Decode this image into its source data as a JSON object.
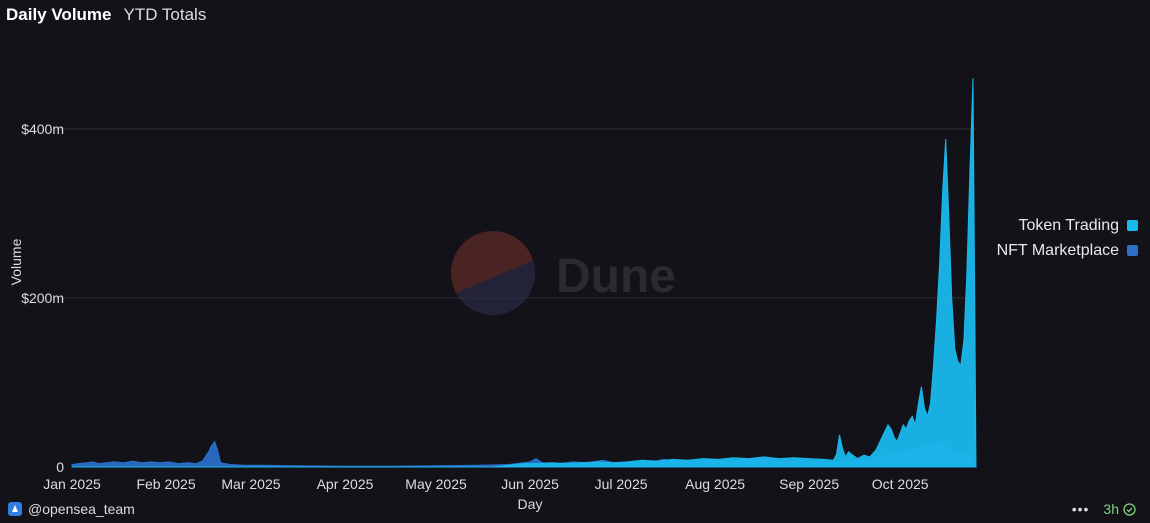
{
  "tabs": [
    {
      "label": "Daily Volume",
      "active": true
    },
    {
      "label": "YTD Totals",
      "active": false
    }
  ],
  "watermark": {
    "text": "Dune"
  },
  "footer": {
    "owner": "@opensea_team",
    "age": "3h"
  },
  "colors": {
    "background": "#121218",
    "token_trading": "#1ab8ec",
    "nft_marketplace": "#2a6fc9",
    "grid": "#2e2e38"
  },
  "chart_data": {
    "type": "area",
    "stacked": true,
    "xlabel": "Day",
    "ylabel": "Volume",
    "xlim": [
      "2025-01-01",
      "2025-10-26"
    ],
    "ylim": [
      0,
      480
    ],
    "y_ticks": [
      {
        "value": 0,
        "label": "0"
      },
      {
        "value": 200,
        "label": "$200m"
      },
      {
        "value": 400,
        "label": "$400m"
      }
    ],
    "x_ticks": [
      {
        "date": "2025-01-01",
        "label": "Jan 2025"
      },
      {
        "date": "2025-02-01",
        "label": "Feb 2025"
      },
      {
        "date": "2025-03-01",
        "label": "Mar 2025"
      },
      {
        "date": "2025-04-01",
        "label": "Apr 2025"
      },
      {
        "date": "2025-05-01",
        "label": "May 2025"
      },
      {
        "date": "2025-06-01",
        "label": "Jun 2025"
      },
      {
        "date": "2025-07-01",
        "label": "Jul 2025"
      },
      {
        "date": "2025-08-01",
        "label": "Aug 2025"
      },
      {
        "date": "2025-09-01",
        "label": "Sep 2025"
      },
      {
        "date": "2025-10-01",
        "label": "Oct 2025"
      }
    ],
    "grid": true,
    "legend_position": "right",
    "units": "$ millions",
    "series": [
      {
        "name": "Token Trading",
        "color": "#1ab8ec",
        "points": [
          [
            "2025-01-01",
            0
          ],
          [
            "2025-05-20",
            0
          ],
          [
            "2025-05-25",
            2
          ],
          [
            "2025-05-30",
            4
          ],
          [
            "2025-06-03",
            4
          ],
          [
            "2025-06-08",
            5
          ],
          [
            "2025-06-13",
            4
          ],
          [
            "2025-06-18",
            5
          ],
          [
            "2025-06-23",
            6
          ],
          [
            "2025-06-28",
            5
          ],
          [
            "2025-07-03",
            6
          ],
          [
            "2025-07-08",
            8
          ],
          [
            "2025-07-13",
            7
          ],
          [
            "2025-07-18",
            9
          ],
          [
            "2025-07-23",
            8
          ],
          [
            "2025-07-28",
            10
          ],
          [
            "2025-08-02",
            9
          ],
          [
            "2025-08-07",
            11
          ],
          [
            "2025-08-12",
            10
          ],
          [
            "2025-08-17",
            12
          ],
          [
            "2025-08-22",
            10
          ],
          [
            "2025-08-27",
            11
          ],
          [
            "2025-09-01",
            10
          ],
          [
            "2025-09-06",
            9
          ],
          [
            "2025-09-09",
            8
          ],
          [
            "2025-09-10",
            15
          ],
          [
            "2025-09-11",
            38
          ],
          [
            "2025-09-12",
            22
          ],
          [
            "2025-09-13",
            12
          ],
          [
            "2025-09-14",
            18
          ],
          [
            "2025-09-15",
            15
          ],
          [
            "2025-09-17",
            10
          ],
          [
            "2025-09-19",
            14
          ],
          [
            "2025-09-21",
            12
          ],
          [
            "2025-09-23",
            20
          ],
          [
            "2025-09-25",
            35
          ],
          [
            "2025-09-27",
            50
          ],
          [
            "2025-09-28",
            45
          ],
          [
            "2025-09-29",
            35
          ],
          [
            "2025-09-30",
            30
          ],
          [
            "2025-10-01",
            40
          ],
          [
            "2025-10-02",
            50
          ],
          [
            "2025-10-03",
            45
          ],
          [
            "2025-10-04",
            55
          ],
          [
            "2025-10-05",
            60
          ],
          [
            "2025-10-06",
            50
          ],
          [
            "2025-10-07",
            75
          ],
          [
            "2025-10-08",
            95
          ],
          [
            "2025-10-09",
            70
          ],
          [
            "2025-10-10",
            60
          ],
          [
            "2025-10-11",
            75
          ],
          [
            "2025-10-12",
            120
          ],
          [
            "2025-10-13",
            175
          ],
          [
            "2025-10-14",
            240
          ],
          [
            "2025-10-15",
            325
          ],
          [
            "2025-10-16",
            388
          ],
          [
            "2025-10-17",
            300
          ],
          [
            "2025-10-18",
            200
          ],
          [
            "2025-10-19",
            140
          ],
          [
            "2025-10-20",
            125
          ],
          [
            "2025-10-21",
            120
          ],
          [
            "2025-10-22",
            150
          ],
          [
            "2025-10-23",
            230
          ],
          [
            "2025-10-24",
            350
          ],
          [
            "2025-10-25",
            460
          ],
          [
            "2025-10-26",
            0
          ]
        ]
      },
      {
        "name": "NFT Marketplace",
        "color": "#2a6fc9",
        "points": [
          [
            "2025-01-01",
            3
          ],
          [
            "2025-01-03",
            4
          ],
          [
            "2025-01-06",
            5
          ],
          [
            "2025-01-08",
            6
          ],
          [
            "2025-01-10",
            4
          ],
          [
            "2025-01-12",
            5
          ],
          [
            "2025-01-15",
            6
          ],
          [
            "2025-01-18",
            5
          ],
          [
            "2025-01-21",
            7
          ],
          [
            "2025-01-24",
            5
          ],
          [
            "2025-01-27",
            6
          ],
          [
            "2025-01-30",
            5
          ],
          [
            "2025-02-02",
            6
          ],
          [
            "2025-02-05",
            4
          ],
          [
            "2025-02-08",
            5
          ],
          [
            "2025-02-11",
            4
          ],
          [
            "2025-02-13",
            7
          ],
          [
            "2025-02-15",
            18
          ],
          [
            "2025-02-16",
            25
          ],
          [
            "2025-02-17",
            30
          ],
          [
            "2025-02-18",
            20
          ],
          [
            "2025-02-19",
            5
          ],
          [
            "2025-02-22",
            3
          ],
          [
            "2025-02-27",
            2
          ],
          [
            "2025-03-05",
            2
          ],
          [
            "2025-03-15",
            1.5
          ],
          [
            "2025-04-01",
            1
          ],
          [
            "2025-04-15",
            1
          ],
          [
            "2025-05-01",
            1.5
          ],
          [
            "2025-05-15",
            2
          ],
          [
            "2025-05-25",
            3
          ],
          [
            "2025-06-01",
            6
          ],
          [
            "2025-06-03",
            10
          ],
          [
            "2025-06-05",
            5
          ],
          [
            "2025-06-10",
            4
          ],
          [
            "2025-06-15",
            6
          ],
          [
            "2025-06-20",
            5
          ],
          [
            "2025-06-25",
            8
          ],
          [
            "2025-06-30",
            4
          ],
          [
            "2025-07-05",
            6
          ],
          [
            "2025-07-10",
            5
          ],
          [
            "2025-07-15",
            9
          ],
          [
            "2025-07-20",
            7
          ],
          [
            "2025-07-25",
            5
          ],
          [
            "2025-07-30",
            9
          ],
          [
            "2025-08-04",
            6
          ],
          [
            "2025-08-09",
            8
          ],
          [
            "2025-08-14",
            10
          ],
          [
            "2025-08-19",
            7
          ],
          [
            "2025-08-24",
            5
          ],
          [
            "2025-08-29",
            8
          ],
          [
            "2025-09-03",
            6
          ],
          [
            "2025-09-08",
            5
          ],
          [
            "2025-09-09",
            4
          ],
          [
            "2025-09-12",
            6
          ],
          [
            "2025-09-16",
            7
          ],
          [
            "2025-09-20",
            8
          ],
          [
            "2025-09-24",
            12
          ],
          [
            "2025-09-28",
            15
          ],
          [
            "2025-10-02",
            18
          ],
          [
            "2025-10-06",
            20
          ],
          [
            "2025-10-08",
            25
          ],
          [
            "2025-10-10",
            28
          ],
          [
            "2025-10-12",
            22
          ],
          [
            "2025-10-14",
            30
          ],
          [
            "2025-10-16",
            25
          ],
          [
            "2025-10-18",
            20
          ],
          [
            "2025-10-20",
            18
          ],
          [
            "2025-10-22",
            15
          ],
          [
            "2025-10-24",
            12
          ],
          [
            "2025-10-25",
            8
          ],
          [
            "2025-10-26",
            0
          ]
        ]
      }
    ]
  }
}
